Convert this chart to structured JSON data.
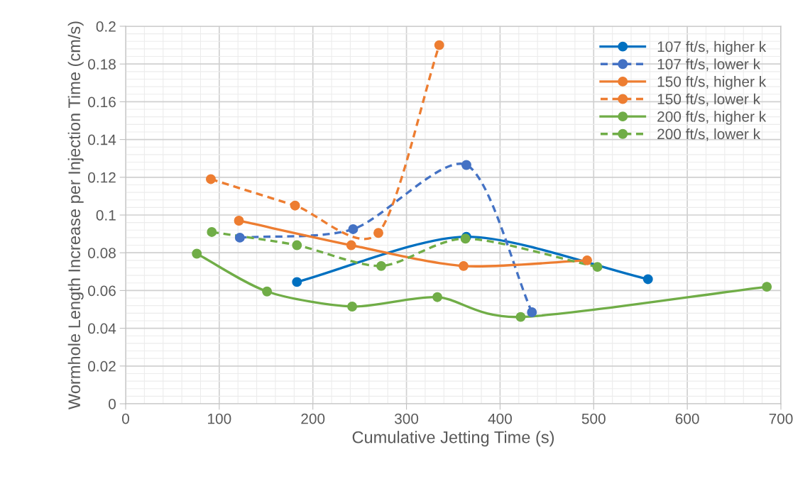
{
  "chart_data": {
    "type": "line",
    "xlabel": "Cumulative Jetting Time (s)",
    "ylabel": "Wormhole Length Increase per Injection Time (cm/s)",
    "xlim": [
      0,
      700
    ],
    "xticks": [
      0,
      100,
      200,
      300,
      400,
      500,
      600,
      700
    ],
    "ylim": [
      0,
      0.2
    ],
    "yticks": [
      0,
      0.02,
      0.04,
      0.06,
      0.08,
      0.1,
      0.12,
      0.14,
      0.16,
      0.18,
      0.2
    ],
    "grid": true,
    "legend": "top right",
    "marker": "circle",
    "series": [
      {
        "name": "107 ft/s, higher k",
        "color": "#0070c0",
        "line_style": "solid",
        "x": [
          183,
          364,
          558
        ],
        "values": [
          0.0645,
          0.0885,
          0.066
        ]
      },
      {
        "name": "107 ft/s, lower k",
        "color": "#4472c4",
        "line_style": "dashed",
        "x": [
          122,
          243,
          364,
          434
        ],
        "values": [
          0.088,
          0.0925,
          0.1265,
          0.0485
        ]
      },
      {
        "name": "150 ft/s, higher k",
        "color": "#ed7d31",
        "line_style": "solid",
        "x": [
          121,
          241,
          361,
          493
        ],
        "values": [
          0.097,
          0.084,
          0.073,
          0.076
        ]
      },
      {
        "name": "150 ft/s, lower k",
        "color": "#ed7d31",
        "line_style": "dashed",
        "x": [
          91,
          181,
          270,
          335
        ],
        "values": [
          0.119,
          0.105,
          0.0905,
          0.19
        ]
      },
      {
        "name": "200 ft/s, higher k",
        "color": "#70ad47",
        "line_style": "solid",
        "x": [
          76,
          151,
          242,
          333,
          422,
          685
        ],
        "values": [
          0.0795,
          0.0595,
          0.0515,
          0.0565,
          0.046,
          0.062
        ]
      },
      {
        "name": "200 ft/s, lower k",
        "color": "#70ad47",
        "line_style": "dashed",
        "x": [
          92,
          183,
          273,
          363,
          504
        ],
        "values": [
          0.091,
          0.084,
          0.073,
          0.0875,
          0.0725
        ]
      }
    ]
  }
}
